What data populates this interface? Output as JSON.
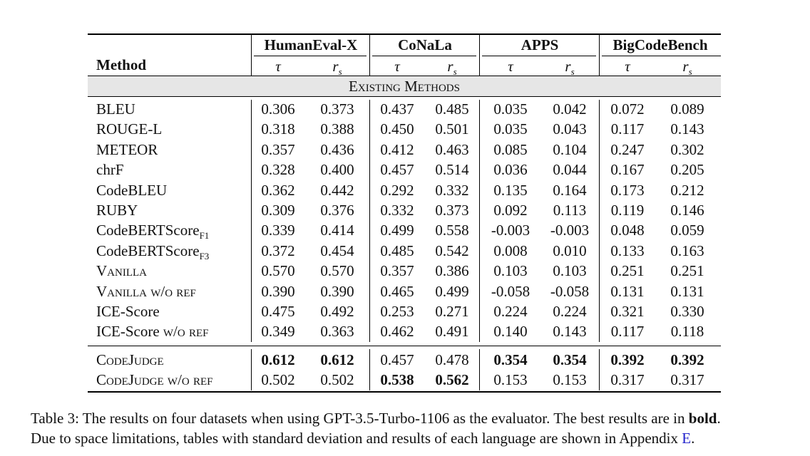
{
  "header": {
    "method_label": "Method",
    "groups": [
      "HumanEval-X",
      "CoNaLa",
      "APPS",
      "BigCodeBench"
    ],
    "tau": "τ",
    "rs_main": "r",
    "rs_sub": "s"
  },
  "section_label": "Existing Methods",
  "existing_methods": [
    {
      "name": "BLEU",
      "values": [
        "0.306",
        "0.373",
        "0.437",
        "0.485",
        "0.035",
        "0.042",
        "0.072",
        "0.089"
      ]
    },
    {
      "name": "ROUGE-L",
      "values": [
        "0.318",
        "0.388",
        "0.450",
        "0.501",
        "0.035",
        "0.043",
        "0.117",
        "0.143"
      ]
    },
    {
      "name": "METEOR",
      "values": [
        "0.357",
        "0.436",
        "0.412",
        "0.463",
        "0.085",
        "0.104",
        "0.247",
        "0.302"
      ]
    },
    {
      "name": "chrF",
      "values": [
        "0.328",
        "0.400",
        "0.457",
        "0.514",
        "0.036",
        "0.044",
        "0.167",
        "0.205"
      ]
    },
    {
      "name": "CodeBLEU",
      "values": [
        "0.362",
        "0.442",
        "0.292",
        "0.332",
        "0.135",
        "0.164",
        "0.173",
        "0.212"
      ]
    },
    {
      "name": "RUBY",
      "values": [
        "0.309",
        "0.376",
        "0.332",
        "0.373",
        "0.092",
        "0.113",
        "0.119",
        "0.146"
      ]
    },
    {
      "name": "CodeBERTScore",
      "sub": "F1",
      "values": [
        "0.339",
        "0.414",
        "0.499",
        "0.558",
        "-0.003",
        "-0.003",
        "0.048",
        "0.059"
      ]
    },
    {
      "name": "CodeBERTScore",
      "sub": "F3",
      "values": [
        "0.372",
        "0.454",
        "0.485",
        "0.542",
        "0.008",
        "0.010",
        "0.133",
        "0.163"
      ]
    },
    {
      "name": "Vanilla",
      "smallcaps": true,
      "values": [
        "0.570",
        "0.570",
        "0.357",
        "0.386",
        "0.103",
        "0.103",
        "0.251",
        "0.251"
      ]
    },
    {
      "name": "Vanilla w/o ref",
      "smallcaps": true,
      "values": [
        "0.390",
        "0.390",
        "0.465",
        "0.499",
        "-0.058",
        "-0.058",
        "0.131",
        "0.131"
      ]
    },
    {
      "name": "ICE-Score",
      "values": [
        "0.475",
        "0.492",
        "0.253",
        "0.271",
        "0.224",
        "0.224",
        "0.321",
        "0.330"
      ]
    },
    {
      "name": "ICE-Score w/o ref",
      "suffix_sc": true,
      "values": [
        "0.349",
        "0.363",
        "0.462",
        "0.491",
        "0.140",
        "0.143",
        "0.117",
        "0.118"
      ]
    }
  ],
  "ours": [
    {
      "name": "CodeJudge",
      "smallcaps": true,
      "values": [
        "0.612",
        "0.612",
        "0.457",
        "0.478",
        "0.354",
        "0.354",
        "0.392",
        "0.392"
      ],
      "bold": [
        true,
        true,
        false,
        false,
        true,
        true,
        true,
        true
      ]
    },
    {
      "name": "CodeJudge w/o ref",
      "smallcaps": true,
      "values": [
        "0.502",
        "0.502",
        "0.538",
        "0.562",
        "0.153",
        "0.153",
        "0.317",
        "0.317"
      ],
      "bold": [
        false,
        false,
        true,
        true,
        false,
        false,
        false,
        false
      ]
    }
  ],
  "caption": {
    "line1_a": "Table 3: The results on four datasets when using GPT-3.5-Turbo-1106 as the evaluator. The best results are in ",
    "line1_bold": "bold",
    "line1_end": ".",
    "line2_a": "Due to space limitations, tables with standard deviation and results of each language are shown in Appendix ",
    "line2_link": "E",
    "line2_end": "."
  }
}
